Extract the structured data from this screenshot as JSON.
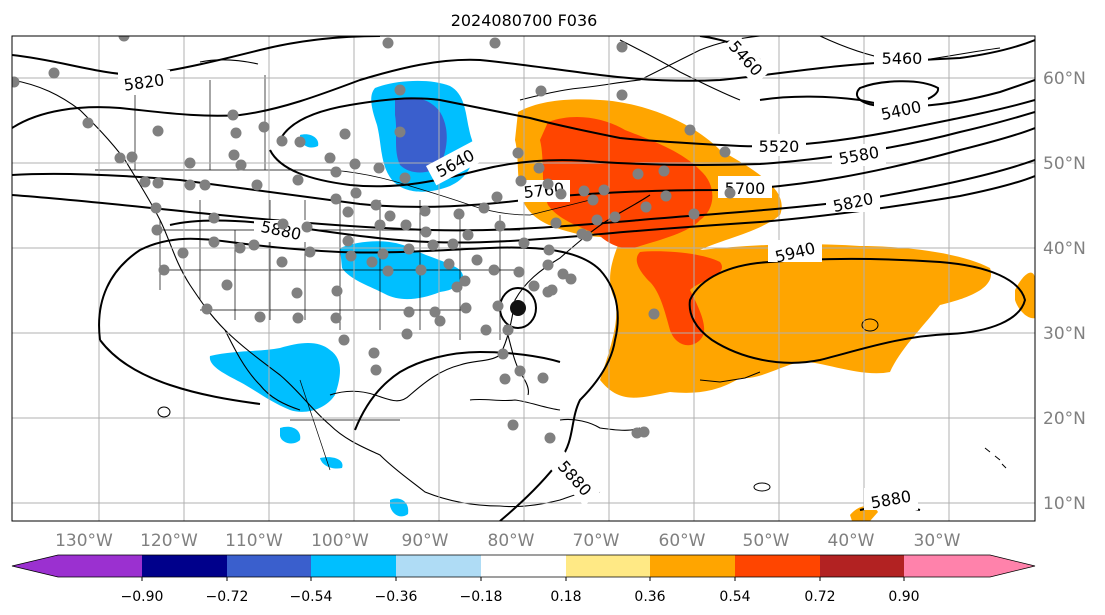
{
  "title": "2024080700 F036",
  "lon_labels": [
    "130°W",
    "120°W",
    "110°W",
    "100°W",
    "90°W",
    "80°W",
    "70°W",
    "60°W",
    "50°W",
    "40°W",
    "30°W"
  ],
  "lat_labels": [
    "60°N",
    "50°N",
    "40°N",
    "30°N",
    "20°N",
    "10°N"
  ],
  "contour_labels": [
    "5820",
    "5460",
    "5400",
    "5520",
    "5580",
    "5640",
    "5760",
    "5700",
    "5820",
    "5880",
    "5940",
    "5880",
    "5880"
  ],
  "colorbar": {
    "tick_labels": [
      "−0.90",
      "−0.72",
      "−0.54",
      "−0.36",
      "−0.18",
      "0.18",
      "0.36",
      "0.54",
      "0.72",
      "0.90"
    ],
    "colors": [
      "#9b30d0",
      "#00008b",
      "#3a5fcd",
      "#00bfff",
      "#afdcf5",
      "#ffffff",
      "#ffe985",
      "#ffa500",
      "#ff4500",
      "#b22222",
      "#ff82ab"
    ]
  },
  "colors": {
    "land_line": "#000000",
    "contour": "#000000",
    "grid": "#b0b0b0",
    "station_dot": "#808080",
    "axis_label": "#808080"
  }
}
